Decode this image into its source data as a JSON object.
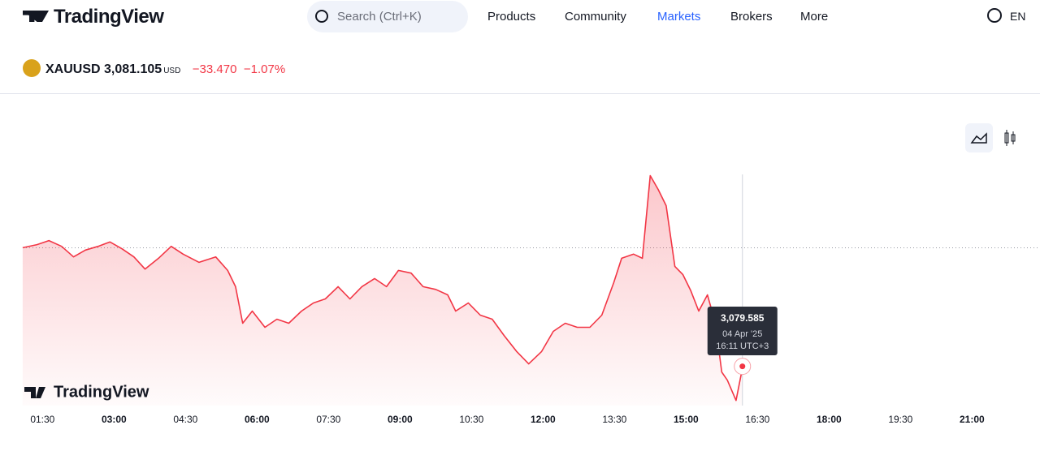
{
  "header": {
    "logo": "TradingView",
    "search": "Search (Ctrl+K)",
    "nav": [
      "Products",
      "Community",
      "Markets",
      "Brokers",
      "More"
    ],
    "language": "EN"
  },
  "symbol": {
    "ticker": "XAUUSD",
    "price": "3,081.105",
    "currency": "USD",
    "change": "−33.470",
    "change_percent": "−1.07%"
  },
  "chart_data": {
    "type": "line",
    "watermark": "TradingView",
    "x": [
      "01:05",
      "01:23",
      "01:38",
      "01:54",
      "02:09",
      "02:24",
      "02:40",
      "02:55",
      "03:10",
      "03:25",
      "03:39",
      "03:56",
      "04:12",
      "04:27",
      "04:47",
      "05:08",
      "05:23",
      "05:33",
      "05:42",
      "05:54",
      "06:10",
      "06:25",
      "06:40",
      "06:56",
      "07:11",
      "07:26",
      "07:42",
      "07:57",
      "08:12",
      "08:28",
      "08:43",
      "08:58",
      "09:14",
      "09:29",
      "09:45",
      "10:00",
      "10:10",
      "10:26",
      "10:41",
      "10:56",
      "11:11",
      "11:27",
      "11:42",
      "11:58",
      "12:13",
      "12:28",
      "12:43",
      "12:59",
      "13:14",
      "13:29",
      "13:39",
      "13:54",
      "14:05",
      "14:15",
      "14:25",
      "14:35",
      "14:46",
      "14:56",
      "15:06",
      "15:16",
      "15:27",
      "15:37",
      "15:45",
      "15:52",
      "16:03",
      "16:10",
      "16:11"
    ],
    "series": [
      {
        "name": "XAUUSD",
        "color": "#f23645",
        "values": [
          3114.6,
          3115.5,
          3116.7,
          3115.0,
          3111.9,
          3113.9,
          3115.0,
          3116.3,
          3114.3,
          3111.9,
          3108.3,
          3111.5,
          3115.0,
          3112.7,
          3110.3,
          3111.9,
          3107.9,
          3103.1,
          3092.3,
          3095.9,
          3091.1,
          3093.5,
          3092.3,
          3095.9,
          3098.3,
          3099.5,
          3103.1,
          3099.5,
          3103.1,
          3105.5,
          3103.1,
          3107.9,
          3107.1,
          3103.1,
          3102.3,
          3100.7,
          3095.9,
          3098.3,
          3094.7,
          3093.5,
          3088.7,
          3083.9,
          3080.3,
          3083.9,
          3089.9,
          3092.3,
          3091.1,
          3091.1,
          3094.7,
          3104.3,
          3111.5,
          3112.7,
          3111.5,
          3135.9,
          3131.8,
          3127.0,
          3109.1,
          3106.7,
          3101.9,
          3095.9,
          3100.7,
          3092.3,
          3077.9,
          3075.5,
          3069.5,
          3077.9,
          3079.585
        ]
      }
    ],
    "xlim": [
      "01:00",
      "22:00"
    ],
    "ylim": [
      3068,
      3159
    ],
    "xticks": [
      "01:30",
      "03:00",
      "04:30",
      "06:00",
      "07:30",
      "09:00",
      "10:30",
      "12:00",
      "13:30",
      "15:00",
      "16:30",
      "18:00",
      "19:30",
      "21:00"
    ],
    "reference_line": 3114.575,
    "tooltip": {
      "price": "3,079.585",
      "date": "04 Apr '25",
      "time": "16:11 UTC+3"
    }
  }
}
